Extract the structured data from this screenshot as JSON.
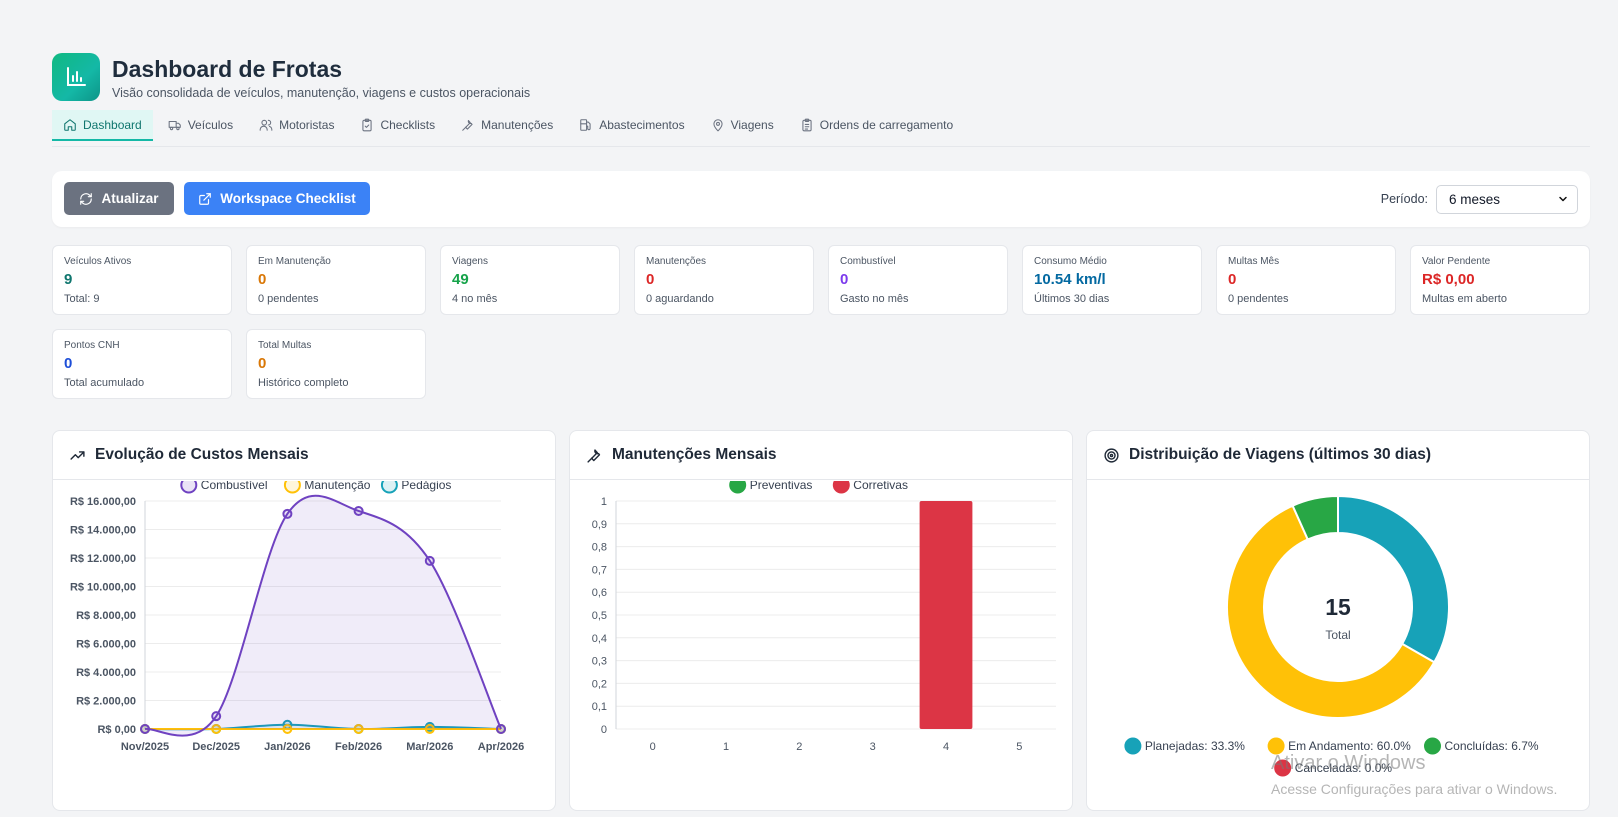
{
  "header": {
    "title": "Dashboard de Frotas",
    "subtitle": "Visão consolidada de veículos, manutenção, viagens e custos operacionais"
  },
  "tabs": [
    {
      "label": "Dashboard",
      "icon": "home-icon",
      "active": true
    },
    {
      "label": "Veículos",
      "icon": "truck-icon",
      "active": false
    },
    {
      "label": "Motoristas",
      "icon": "users-icon",
      "active": false
    },
    {
      "label": "Checklists",
      "icon": "clipboard-check-icon",
      "active": false
    },
    {
      "label": "Manutenções",
      "icon": "wrench-icon",
      "active": false
    },
    {
      "label": "Abastecimentos",
      "icon": "fuel-icon",
      "active": false
    },
    {
      "label": "Viagens",
      "icon": "map-pin-icon",
      "active": false
    },
    {
      "label": "Ordens de carregamento",
      "icon": "clipboard-list-icon",
      "active": false
    }
  ],
  "toolbar": {
    "refresh_label": "Atualizar",
    "workspace_label": "Workspace Checklist",
    "period_label": "Período:",
    "period_value": "6 meses"
  },
  "kpis": [
    {
      "label": "Veículos Ativos",
      "value": "9",
      "sub": "Total: 9",
      "color": "#0f766e"
    },
    {
      "label": "Em Manutenção",
      "value": "0",
      "sub": "0 pendentes",
      "color": "#d97706"
    },
    {
      "label": "Viagens",
      "value": "49",
      "sub": "4 no mês",
      "color": "#16a34a"
    },
    {
      "label": "Manutenções",
      "value": "0",
      "sub": "0 aguardando",
      "color": "#dc2626"
    },
    {
      "label": "Combustível",
      "value": "0",
      "sub": "Gasto no mês",
      "color": "#7c3aed"
    },
    {
      "label": "Consumo Médio",
      "value": "10.54 km/l",
      "sub": "Últimos 30 dias",
      "color": "#0369a1"
    },
    {
      "label": "Multas Mês",
      "value": "0",
      "sub": "0 pendentes",
      "color": "#dc2626"
    },
    {
      "label": "Valor Pendente",
      "value": "R$ 0,00",
      "sub": "Multas em aberto",
      "color": "#dc2626"
    },
    {
      "label": "Pontos CNH",
      "value": "0",
      "sub": "Total acumulado",
      "color": "#1d4ed8"
    },
    {
      "label": "Total Multas",
      "value": "0",
      "sub": "Histórico completo",
      "color": "#d97706"
    }
  ],
  "panels": {
    "costs_title": "Evolução de Custos Mensais",
    "maint_title": "Manutenções Mensais",
    "trips_title": "Distribuição de Viagens (últimos 30 dias)"
  },
  "chart_data": [
    {
      "type": "area",
      "title": "Evolução de Custos Mensais",
      "categories": [
        "Nov/2025",
        "Dec/2025",
        "Jan/2026",
        "Feb/2026",
        "Mar/2026",
        "Apr/2026"
      ],
      "ylim": [
        0,
        16000
      ],
      "yticks": [
        0,
        2000,
        4000,
        6000,
        8000,
        10000,
        12000,
        14000,
        16000
      ],
      "ytick_labels": [
        "R$ 0,00",
        "R$ 2.000,00",
        "R$ 4.000,00",
        "R$ 6.000,00",
        "R$ 8.000,00",
        "R$ 10.000,00",
        "R$ 12.000,00",
        "R$ 14.000,00",
        "R$ 16.000,00"
      ],
      "series": [
        {
          "name": "Combustível",
          "color": "#6f42c1",
          "values": [
            0,
            900,
            15100,
            15300,
            11800,
            0
          ]
        },
        {
          "name": "Manutenção",
          "color": "#ffc107",
          "values": [
            0,
            0,
            0,
            0,
            0,
            0
          ]
        },
        {
          "name": "Pedágios",
          "color": "#17a2b8",
          "values": [
            0,
            0,
            300,
            0,
            150,
            0
          ]
        }
      ],
      "legend": "top"
    },
    {
      "type": "bar",
      "title": "Manutenções Mensais",
      "categories": [
        "0",
        "1",
        "2",
        "3",
        "4",
        "5"
      ],
      "ylim": [
        0,
        1
      ],
      "yticks": [
        0,
        0.1,
        0.2,
        0.3,
        0.4,
        0.5,
        0.6,
        0.7,
        0.8,
        0.9,
        1
      ],
      "ytick_labels": [
        "0",
        "0,1",
        "0,2",
        "0,3",
        "0,4",
        "0,5",
        "0,6",
        "0,7",
        "0,8",
        "0,9",
        "1"
      ],
      "series": [
        {
          "name": "Preventivas",
          "color": "#28a745",
          "values": [
            0,
            0,
            0,
            0,
            0,
            0
          ]
        },
        {
          "name": "Corretivas",
          "color": "#dc3545",
          "values": [
            0,
            0,
            0,
            0,
            1,
            0
          ]
        }
      ],
      "legend": "top"
    },
    {
      "type": "pie",
      "title": "Distribuição de Viagens (últimos 30 dias)",
      "center_value": "15",
      "center_label": "Total",
      "slices": [
        {
          "name": "Planejadas",
          "value": 33.3,
          "label": "Planejadas: 33.3%",
          "color": "#17a2b8"
        },
        {
          "name": "Em Andamento",
          "value": 60.0,
          "label": "Em Andamento: 60.0%",
          "color": "#ffc107"
        },
        {
          "name": "Concluídas",
          "value": 6.7,
          "label": "Concluídas: 6.7%",
          "color": "#28a745"
        },
        {
          "name": "Canceladas",
          "value": 0.0,
          "label": "Canceladas: 0.0%",
          "color": "#dc3545"
        }
      ],
      "legend": "bottom"
    }
  ],
  "watermark": {
    "line1": "Ativar o Windows",
    "line2": "Acesse Configurações para ativar o Windows."
  }
}
